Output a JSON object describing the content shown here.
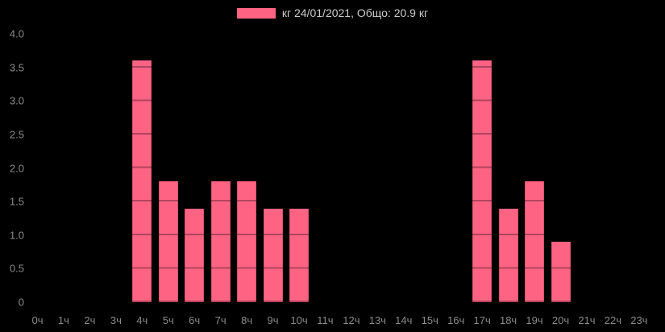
{
  "legend": {
    "label": "кг 24/01/2021, Общо: 20.9 кг",
    "swatch_color": "#ff6384"
  },
  "chart_data": {
    "type": "bar",
    "title": "",
    "series_name": "кг 24/01/2021",
    "total_text": "Общо: 20.9 кг",
    "total_value": 20.9,
    "unit": "кг",
    "categories": [
      "0ч",
      "1ч",
      "2ч",
      "3ч",
      "4ч",
      "5ч",
      "6ч",
      "7ч",
      "8ч",
      "9ч",
      "10ч",
      "11ч",
      "12ч",
      "13ч",
      "14ч",
      "15ч",
      "16ч",
      "17ч",
      "18ч",
      "19ч",
      "20ч",
      "21ч",
      "22ч",
      "23ч"
    ],
    "values": [
      0,
      0,
      0,
      0,
      3.6,
      1.8,
      1.4,
      1.8,
      1.8,
      1.4,
      1.4,
      0,
      0,
      0,
      0,
      0,
      0,
      3.6,
      1.4,
      1.8,
      0.9,
      0,
      0,
      0
    ],
    "xlabel": "",
    "ylabel": "",
    "ylim": [
      0,
      4.0
    ],
    "ytick_step": 0.5,
    "ytick_labels": [
      "4.0",
      "3.5",
      "3.0",
      "2.5",
      "2.0",
      "1.5",
      "1.0",
      "0.5",
      "0"
    ],
    "grid": "dark gridlines every 0.5 visible only over bars",
    "legend_position": "top-center",
    "colors": {
      "background": "#000000",
      "bar": "#ff6384",
      "bar_gridline": "rgba(0,0,0,0.3)",
      "tick_text": "#8a8a8a",
      "legend_text": "#cccccc"
    }
  }
}
